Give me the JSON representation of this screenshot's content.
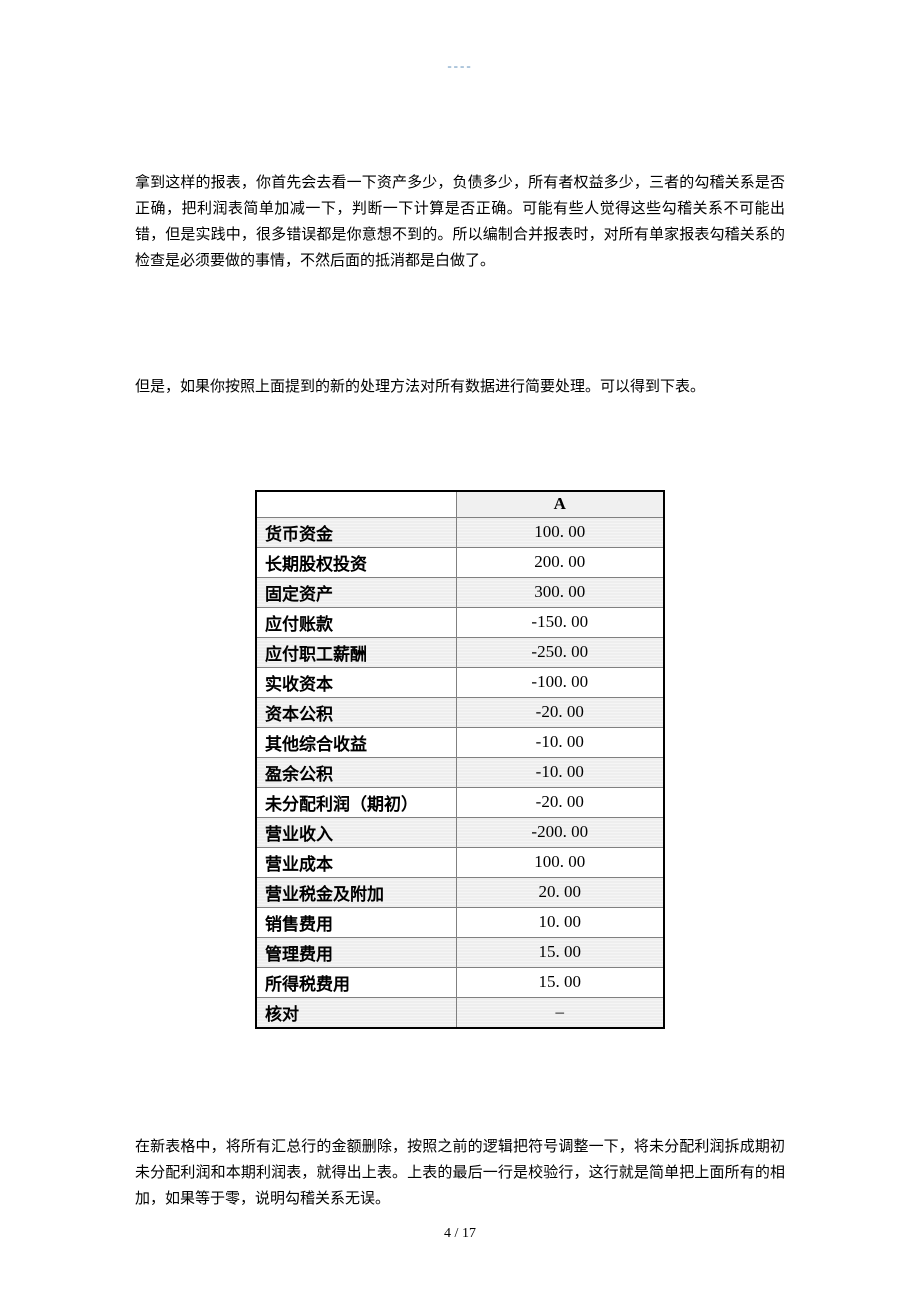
{
  "header_marker": "----",
  "paragraph1": "拿到这样的报表，你首先会去看一下资产多少，负债多少，所有者权益多少，三者的勾稽关系是否正确，把利润表简单加减一下，判断一下计算是否正确。可能有些人觉得这些勾稽关系不可能出错，但是实践中，很多错误都是你意想不到的。所以编制合并报表时，对所有单家报表勾稽关系的检查是必须要做的事情，不然后面的抵消都是白做了。",
  "paragraph2": "但是，如果你按照上面提到的新的处理方法对所有数据进行简要处理。可以得到下表。",
  "paragraph3": "在新表格中，将所有汇总行的金额删除，按照之前的逻辑把符号调整一下，将未分配利润拆成期初未分配利润和本期利润表，就得出上表。上表的最后一行是校验行，这行就是简单把上面所有的相加，如果等于零，说明勾稽关系无误。",
  "table": {
    "header_col1": "",
    "header_col2": "A",
    "rows": [
      {
        "label": "货币资金",
        "value": "100. 00"
      },
      {
        "label": "长期股权投资",
        "value": "200. 00"
      },
      {
        "label": "固定资产",
        "value": "300. 00"
      },
      {
        "label": "应付账款",
        "value": "-150. 00"
      },
      {
        "label": "应付职工薪酬",
        "value": "-250. 00"
      },
      {
        "label": "实收资本",
        "value": "-100. 00"
      },
      {
        "label": "资本公积",
        "value": "-20. 00"
      },
      {
        "label": "其他综合收益",
        "value": "-10. 00"
      },
      {
        "label": "盈余公积",
        "value": "-10. 00"
      },
      {
        "label": "未分配利润（期初）",
        "value": "-20. 00"
      },
      {
        "label": "营业收入",
        "value": "-200. 00"
      },
      {
        "label": "营业成本",
        "value": "100. 00"
      },
      {
        "label": "营业税金及附加",
        "value": "20. 00"
      },
      {
        "label": "销售费用",
        "value": "10. 00"
      },
      {
        "label": "管理费用",
        "value": "15. 00"
      },
      {
        "label": "所得税费用",
        "value": "15. 00"
      },
      {
        "label": "核对",
        "value": "–"
      }
    ]
  },
  "page_number": "4 / 17"
}
